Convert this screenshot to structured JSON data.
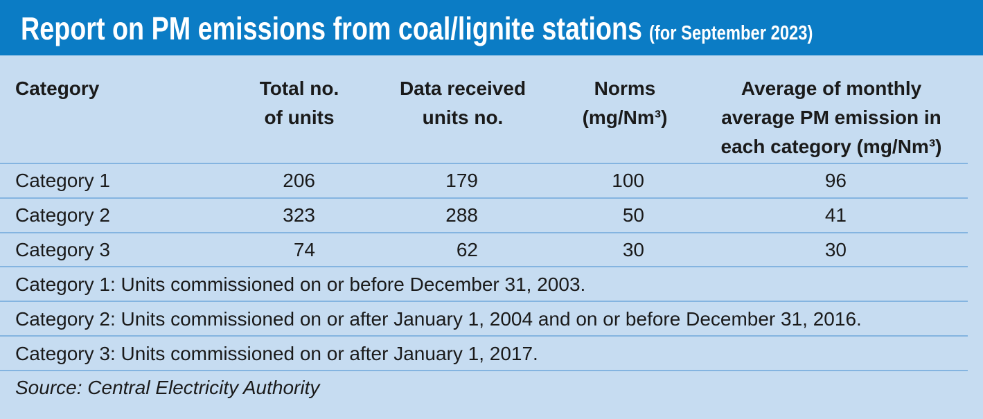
{
  "header": {
    "title": "Report on PM emissions from coal/lignite stations",
    "subtitle": "(for September 2023)"
  },
  "table": {
    "columns": [
      [
        "Category"
      ],
      [
        "Total no.",
        "of units"
      ],
      [
        "Data received",
        "units no."
      ],
      [
        "Norms",
        "(mg/Nm³)"
      ],
      [
        "Average of monthly",
        "average PM emission in",
        "each category (mg/Nm³)"
      ]
    ],
    "rows": [
      [
        "Category 1",
        206,
        179,
        100,
        96
      ],
      [
        "Category 2",
        323,
        288,
        50,
        41
      ],
      [
        "Category 3",
        74,
        62,
        30,
        30
      ]
    ]
  },
  "notes": [
    "Category 1: Units commissioned on or before December 31, 2003.",
    "Category 2: Units commissioned on or after January 1, 2004 and on or before December 31, 2016.",
    "Category 3: Units commissioned on or after January 1, 2017."
  ],
  "source": "Source: Central Electricity Authority"
}
